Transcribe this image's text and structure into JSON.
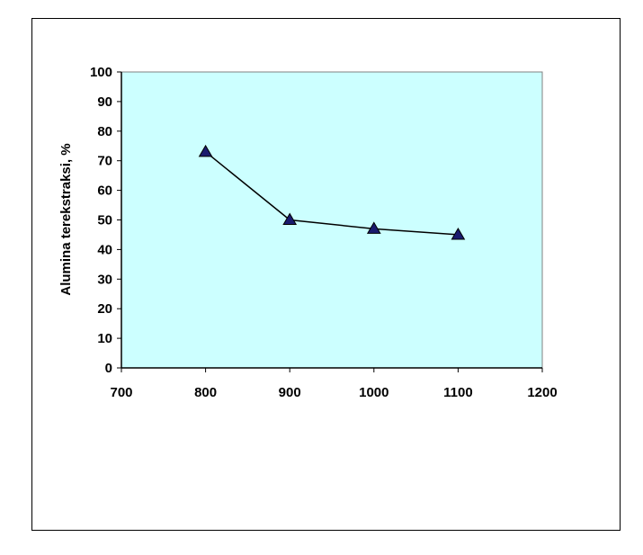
{
  "chart_data": {
    "type": "line",
    "ylabel": "Alumina terekstraksi, %",
    "x": [
      800,
      900,
      1000,
      1100
    ],
    "series": [
      {
        "values": [
          73,
          50,
          47,
          45
        ],
        "color": "#000000",
        "marker_color": "#1a1a6e"
      }
    ],
    "xlim": [
      700,
      1200
    ],
    "xticks": [
      700,
      800,
      900,
      1000,
      1100,
      1200
    ],
    "ylim": [
      0,
      100
    ],
    "yticks": [
      0,
      10,
      20,
      30,
      40,
      50,
      60,
      70,
      80,
      90,
      100
    ],
    "plot_background": "#ccffff"
  }
}
